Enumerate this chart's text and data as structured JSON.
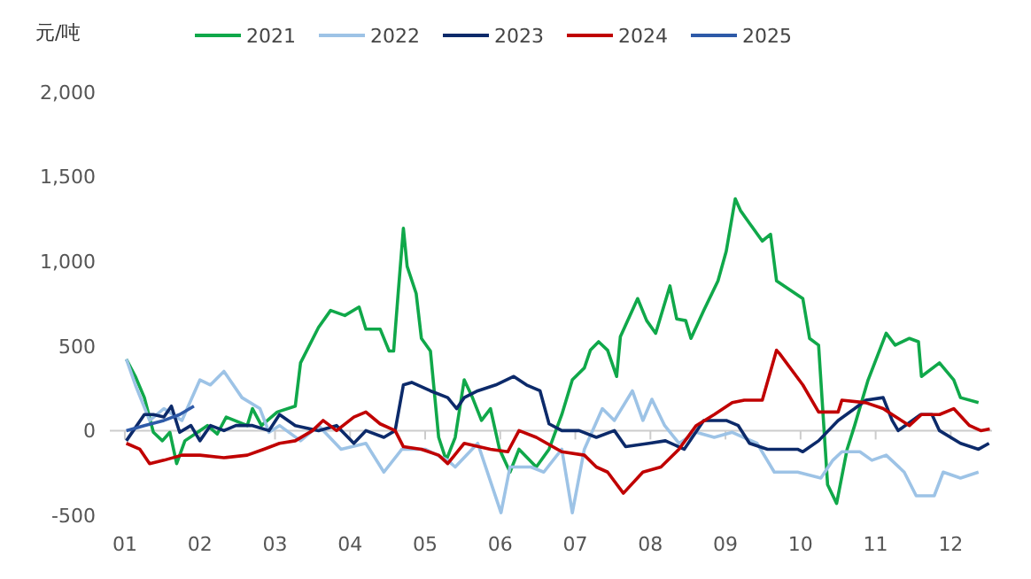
{
  "chart_data": {
    "type": "line",
    "ylabel": "元/吨",
    "legend": "top",
    "grid": false,
    "marker": "none",
    "line_style": "solid",
    "xlim": [
      0.8,
      12.55
    ],
    "xticks": [
      {
        "value": 1,
        "label": "01"
      },
      {
        "value": 2,
        "label": "02"
      },
      {
        "value": 3,
        "label": "03"
      },
      {
        "value": 4,
        "label": "04"
      },
      {
        "value": 5,
        "label": "05"
      },
      {
        "value": 6,
        "label": "06"
      },
      {
        "value": 7,
        "label": "07"
      },
      {
        "value": 8,
        "label": "08"
      },
      {
        "value": 9,
        "label": "09"
      },
      {
        "value": 10,
        "label": "10"
      },
      {
        "value": 11,
        "label": "11"
      },
      {
        "value": 12,
        "label": "12"
      }
    ],
    "ylim": [
      -500,
      2000
    ],
    "ref_lines": [
      {
        "axis": "y",
        "value": 0,
        "color": "#cccccc",
        "line_style": "solid"
      }
    ],
    "yticks": [
      {
        "value": -500,
        "label": "-500"
      },
      {
        "value": 0,
        "label": "0"
      },
      {
        "value": 500,
        "label": "500"
      },
      {
        "value": 1000,
        "label": "1,000"
      },
      {
        "value": 1500,
        "label": "1,500"
      },
      {
        "value": 2000,
        "label": "2,000"
      }
    ],
    "series": [
      {
        "name": "2021",
        "color": "#10a84a",
        "x": [
          1.02,
          1.14,
          1.26,
          1.38,
          1.5,
          1.6,
          1.69,
          1.8,
          2.0,
          2.1,
          2.23,
          2.35,
          2.63,
          2.7,
          2.82,
          3.03,
          3.27,
          3.34,
          3.58,
          3.74,
          3.93,
          4.12,
          4.21,
          4.4,
          4.52,
          4.58,
          4.64,
          4.71,
          4.76,
          4.88,
          4.95,
          5.07,
          5.18,
          5.28,
          5.4,
          5.52,
          5.63,
          5.75,
          5.87,
          5.99,
          6.13,
          6.25,
          6.48,
          6.65,
          6.82,
          6.96,
          7.12,
          7.2,
          7.31,
          7.43,
          7.55,
          7.6,
          7.83,
          7.95,
          8.07,
          8.26,
          8.35,
          8.47,
          8.54,
          8.71,
          8.9,
          9.01,
          9.13,
          9.2,
          9.32,
          9.49,
          9.6,
          9.68,
          10.03,
          10.12,
          10.24,
          10.36,
          10.48,
          10.62,
          10.72,
          10.9,
          11.14,
          11.26,
          11.45,
          11.57,
          11.61,
          11.85,
          12.04,
          12.13,
          12.37
        ],
        "values": [
          422,
          320,
          195,
          -10,
          -60,
          -10,
          -195,
          -60,
          0,
          30,
          -20,
          80,
          30,
          130,
          30,
          110,
          145,
          400,
          610,
          710,
          680,
          730,
          600,
          600,
          470,
          470,
          810,
          1195,
          970,
          810,
          545,
          470,
          -40,
          -175,
          -40,
          300,
          195,
          60,
          130,
          -110,
          -245,
          -110,
          -215,
          -110,
          95,
          300,
          370,
          475,
          525,
          475,
          320,
          555,
          780,
          650,
          575,
          855,
          660,
          650,
          545,
          710,
          885,
          1060,
          1370,
          1300,
          1225,
          1120,
          1160,
          885,
          780,
          545,
          505,
          -320,
          -430,
          -110,
          30,
          300,
          575,
          505,
          545,
          525,
          320,
          400,
          300,
          195,
          165
        ]
      },
      {
        "name": "2022",
        "color": "#9dc3e6",
        "x": [
          1.02,
          1.14,
          1.33,
          1.52,
          1.76,
          2.0,
          2.14,
          2.32,
          2.56,
          2.8,
          2.92,
          3.06,
          3.34,
          3.58,
          3.88,
          4.21,
          4.45,
          4.69,
          5.0,
          5.3,
          5.4,
          5.7,
          6.01,
          6.13,
          6.41,
          6.58,
          6.82,
          6.96,
          7.12,
          7.36,
          7.52,
          7.76,
          7.9,
          8.02,
          8.19,
          8.38,
          8.61,
          8.85,
          9.09,
          9.42,
          9.65,
          9.96,
          10.27,
          10.43,
          10.55,
          10.79,
          10.95,
          11.14,
          11.38,
          11.54,
          11.78,
          11.9,
          12.13,
          12.37
        ],
        "values": [
          422,
          270,
          60,
          130,
          60,
          300,
          270,
          350,
          195,
          130,
          -10,
          30,
          -60,
          30,
          -110,
          -75,
          -245,
          -110,
          -110,
          -175,
          -215,
          -75,
          -485,
          -215,
          -215,
          -245,
          -110,
          -485,
          -110,
          130,
          60,
          235,
          60,
          185,
          30,
          -75,
          -10,
          -40,
          -10,
          -75,
          -245,
          -245,
          -280,
          -175,
          -125,
          -125,
          -175,
          -145,
          -245,
          -385,
          -385,
          -245,
          -280,
          -245
        ]
      },
      {
        "name": "2023",
        "color": "#0c2a6a",
        "x": [
          1.02,
          1.26,
          1.38,
          1.52,
          1.62,
          1.73,
          1.88,
          2.0,
          2.14,
          2.32,
          2.48,
          2.7,
          2.92,
          3.06,
          3.27,
          3.58,
          3.82,
          4.05,
          4.21,
          4.45,
          4.6,
          4.71,
          4.82,
          5.07,
          5.3,
          5.42,
          5.52,
          5.7,
          5.94,
          6.18,
          6.35,
          6.53,
          6.65,
          6.82,
          7.05,
          7.28,
          7.52,
          7.67,
          7.98,
          8.2,
          8.45,
          8.71,
          8.85,
          9.01,
          9.17,
          9.32,
          9.56,
          9.96,
          10.03,
          10.24,
          10.5,
          10.72,
          10.87,
          11.1,
          11.22,
          11.3,
          11.6,
          11.75,
          11.85,
          12.13,
          12.37,
          12.51
        ],
        "values": [
          -60,
          95,
          95,
          80,
          145,
          -10,
          30,
          -60,
          30,
          0,
          30,
          30,
          0,
          95,
          30,
          0,
          30,
          -75,
          0,
          -40,
          0,
          270,
          285,
          235,
          195,
          130,
          195,
          235,
          270,
          320,
          270,
          235,
          40,
          0,
          0,
          -40,
          0,
          -95,
          -75,
          -60,
          -110,
          60,
          60,
          60,
          30,
          -75,
          -110,
          -110,
          -125,
          -60,
          60,
          130,
          180,
          195,
          60,
          0,
          95,
          95,
          0,
          -75,
          -110,
          -75
        ]
      },
      {
        "name": "2024",
        "color": "#c00000",
        "x": [
          1.02,
          1.2,
          1.33,
          1.52,
          1.76,
          2.0,
          2.32,
          2.63,
          2.85,
          3.06,
          3.27,
          3.5,
          3.64,
          3.82,
          4.05,
          4.21,
          4.4,
          4.6,
          4.71,
          4.95,
          5.18,
          5.3,
          5.52,
          5.87,
          6.1,
          6.25,
          6.48,
          6.82,
          7.12,
          7.28,
          7.43,
          7.64,
          7.9,
          8.14,
          8.38,
          8.61,
          8.85,
          9.09,
          9.25,
          9.49,
          9.68,
          9.72,
          10.03,
          10.24,
          10.5,
          10.55,
          10.87,
          11.1,
          11.22,
          11.45,
          11.61,
          11.85,
          12.04,
          12.25,
          12.4,
          12.52
        ],
        "values": [
          -75,
          -110,
          -195,
          -175,
          -145,
          -145,
          -160,
          -145,
          -110,
          -75,
          -60,
          0,
          60,
          0,
          80,
          110,
          40,
          0,
          -95,
          -110,
          -145,
          -195,
          -75,
          -110,
          -125,
          0,
          -40,
          -125,
          -145,
          -215,
          -245,
          -370,
          -245,
          -215,
          -110,
          30,
          95,
          165,
          180,
          180,
          475,
          455,
          270,
          110,
          110,
          180,
          165,
          130,
          95,
          30,
          95,
          95,
          130,
          30,
          0,
          10
        ]
      },
      {
        "name": "2025",
        "color": "#2e5aa8",
        "x": [
          1.02,
          1.26,
          1.52,
          1.73,
          1.92
        ],
        "values": [
          0,
          30,
          60,
          95,
          145
        ]
      }
    ]
  }
}
